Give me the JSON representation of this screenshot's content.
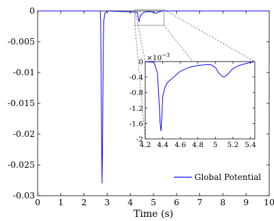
{
  "chart_data": [
    {
      "type": "line",
      "panel": "main",
      "xlabel": "Time (s)",
      "ylabel": "",
      "xlim": [
        0,
        10
      ],
      "ylim": [
        -0.03,
        0
      ],
      "x_ticks": [
        0,
        1,
        2,
        3,
        4,
        5,
        6,
        7,
        8,
        9,
        10
      ],
      "y_ticks": [
        0,
        -0.005,
        -0.01,
        -0.015,
        -0.02,
        -0.025,
        -0.03
      ],
      "x_tick_labels": [
        "0",
        "1",
        "2",
        "3",
        "4",
        "5",
        "6",
        "7",
        "8",
        "9",
        "10"
      ],
      "y_tick_labels": [
        "0",
        "-0.005",
        "-0.01",
        "-0.015",
        "-0.02",
        "-0.025",
        "-0.03"
      ],
      "legend": {
        "position": "bottom-right",
        "entries": [
          "Global Potential"
        ]
      },
      "zoom_box": {
        "x": [
          4.2,
          5.45
        ],
        "y": [
          -0.002,
          0
        ]
      },
      "series": [
        {
          "name": "Global Potential",
          "color": "#0000ff",
          "x": [
            0,
            2.7,
            2.72,
            2.74,
            2.76,
            2.78,
            2.8,
            2.82,
            2.84,
            2.86,
            2.9,
            3.0,
            4.3,
            4.35,
            4.38,
            4.42,
            4.5,
            4.6,
            4.8,
            5.0,
            5.1,
            5.2,
            5.3,
            5.4,
            10
          ],
          "values": [
            0,
            0,
            -0.002,
            -0.01,
            -0.02,
            -0.028,
            -0.022,
            -0.012,
            -0.004,
            -0.0015,
            -0.0004,
            0,
            -0.0002,
            -0.0012,
            -0.0018,
            -0.0009,
            -0.0005,
            -0.0002,
            -0.0001,
            -0.0002,
            -0.0004,
            -0.0002,
            -0.0001,
            0,
            0
          ]
        }
      ]
    },
    {
      "type": "line",
      "panel": "inset",
      "exponent_label": "×10",
      "exponent_power": "−3",
      "xlim": [
        4.2,
        5.45
      ],
      "ylim": [
        -2,
        0
      ],
      "x_ticks": [
        4.2,
        4.4,
        4.6,
        4.8,
        5.0,
        5.2,
        5.4
      ],
      "y_ticks": [
        0,
        -0.4,
        -0.8,
        -1.2,
        -1.6,
        -2
      ],
      "x_tick_labels": [
        "4.2",
        "4.4",
        "4.6",
        "4.8",
        "5",
        "5.2",
        "5.4"
      ],
      "y_tick_labels": [
        "0",
        "-0.4",
        "-0.8",
        "-1.2",
        "-1.6",
        "-2"
      ],
      "series": [
        {
          "name": "Global Potential",
          "color": "#0000ff",
          "x": [
            4.2,
            4.3,
            4.34,
            4.36,
            4.37,
            4.38,
            4.39,
            4.4,
            4.42,
            4.45,
            4.5,
            4.55,
            4.6,
            4.7,
            4.8,
            4.9,
            4.95,
            5.0,
            5.04,
            5.08,
            5.1,
            5.13,
            5.16,
            5.2,
            5.25,
            5.3,
            5.35,
            5.4,
            5.45
          ],
          "values": [
            0,
            -0.02,
            -0.3,
            -1.1,
            -1.6,
            -1.8,
            -1.4,
            -0.9,
            -0.7,
            -0.55,
            -0.45,
            -0.35,
            -0.25,
            -0.15,
            -0.1,
            -0.08,
            -0.08,
            -0.15,
            -0.3,
            -0.38,
            -0.4,
            -0.35,
            -0.28,
            -0.18,
            -0.12,
            -0.08,
            -0.05,
            -0.02,
            0
          ]
        }
      ]
    }
  ]
}
